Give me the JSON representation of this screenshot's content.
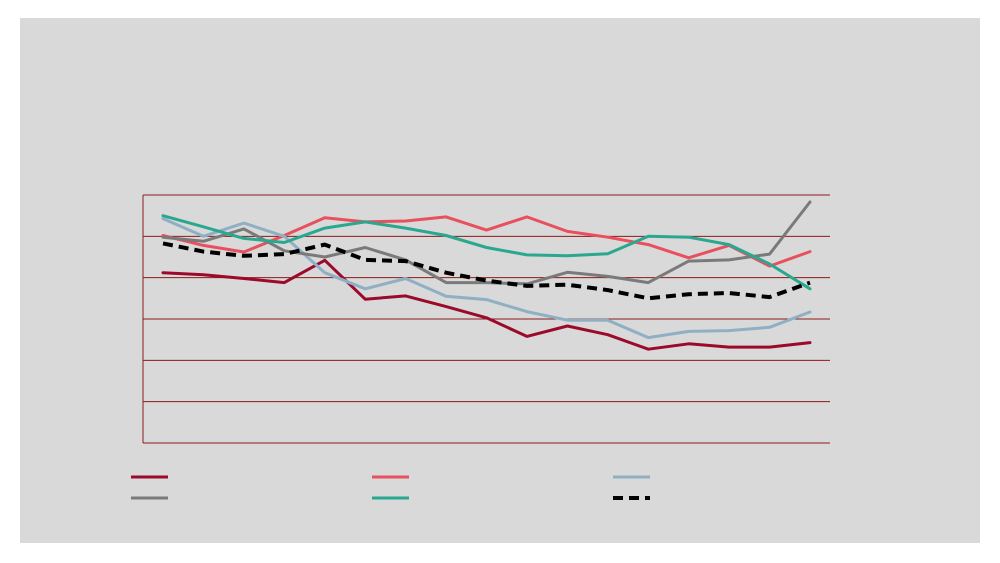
{
  "chart_data": {
    "type": "line",
    "title": "",
    "xlabel": "",
    "ylabel": "",
    "ylim": [
      0,
      6
    ],
    "grid": true,
    "legend_placement": "bottom",
    "x": [
      1,
      2,
      3,
      4,
      5,
      6,
      7,
      8,
      9,
      10,
      11,
      12,
      13,
      14,
      15,
      16,
      17
    ],
    "series": [
      {
        "color": "#9b0a2b",
        "dash": false,
        "values": [
          4.12,
          4.07,
          3.98,
          3.88,
          4.42,
          3.48,
          3.56,
          3.3,
          3.03,
          2.58,
          2.83,
          2.62,
          2.27,
          2.4,
          2.32,
          2.32,
          2.43
        ]
      },
      {
        "color": "#e8505e",
        "dash": false,
        "values": [
          5.02,
          4.78,
          4.62,
          5.02,
          5.45,
          5.35,
          5.37,
          5.47,
          5.15,
          5.47,
          5.12,
          4.98,
          4.8,
          4.48,
          4.78,
          4.28,
          4.63
        ]
      },
      {
        "color": "#8fafc4",
        "dash": false,
        "values": [
          5.43,
          5.0,
          5.32,
          5.0,
          4.12,
          3.73,
          3.98,
          3.55,
          3.47,
          3.18,
          2.97,
          2.97,
          2.55,
          2.7,
          2.72,
          2.8,
          3.17
        ]
      },
      {
        "color": "#7a7a7a",
        "dash": false,
        "values": [
          4.98,
          4.88,
          5.18,
          4.65,
          4.5,
          4.73,
          4.43,
          3.88,
          3.88,
          3.85,
          4.13,
          4.03,
          3.88,
          4.4,
          4.43,
          4.57,
          5.83
        ]
      },
      {
        "color": "#2aa88f",
        "dash": false,
        "values": [
          5.5,
          5.23,
          4.95,
          4.85,
          5.2,
          5.35,
          5.2,
          5.02,
          4.73,
          4.55,
          4.53,
          4.58,
          5.0,
          4.98,
          4.8,
          4.33,
          3.73
        ]
      },
      {
        "color": "#000000",
        "dash": true,
        "values": [
          4.83,
          4.63,
          4.53,
          4.57,
          4.8,
          4.43,
          4.4,
          4.12,
          3.93,
          3.8,
          3.83,
          3.7,
          3.5,
          3.6,
          3.63,
          3.53,
          3.88
        ]
      }
    ]
  }
}
